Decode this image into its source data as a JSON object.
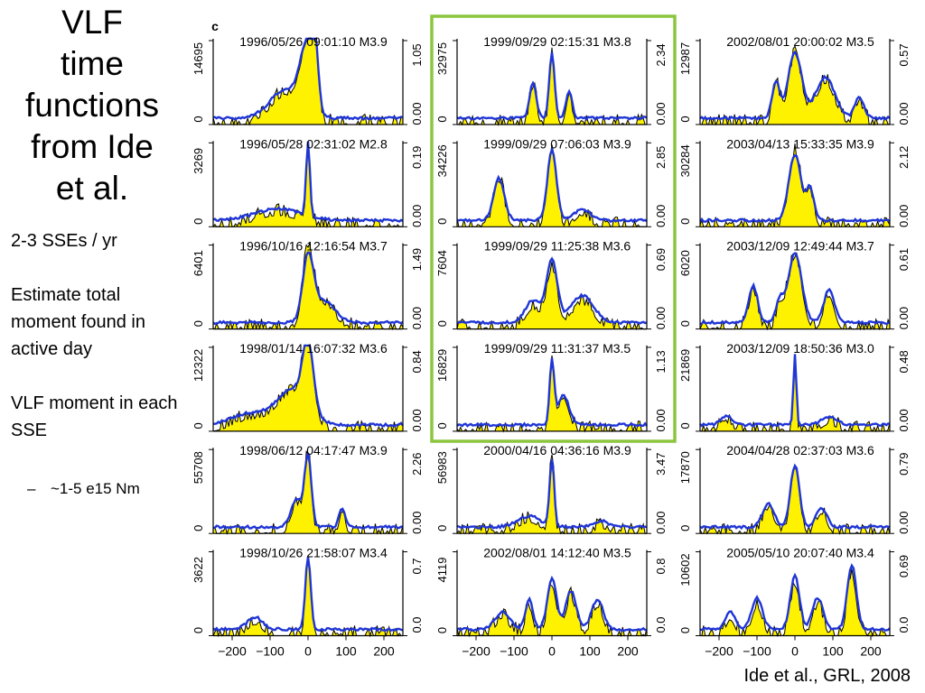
{
  "slide": {
    "title": "VLF\ntime\nfunctions\nfrom Ide\net al.",
    "bullets": [
      "2-3 SSEs / yr",
      "Estimate total moment found in active day",
      "VLF moment in each SSE"
    ],
    "sub_bullet": "~1-5 e15 Nm",
    "sub_bullet_marker": "–",
    "citation": "Ide et al., GRL, 2008",
    "panel_letter": "c"
  },
  "colors": {
    "fill": "#fff200",
    "blue": "#1f35d6",
    "black": "#000000",
    "highlight": "#8cc63f"
  },
  "chart_data": {
    "type": "area",
    "layout": "grid 6 rows x 3 columns",
    "x_ticks": [
      -200,
      -100,
      0,
      100,
      200
    ],
    "x_tick_labels": [
      "−200",
      "−100",
      "0",
      "100",
      "200"
    ],
    "xlim": [
      -250,
      250
    ],
    "highlighted_column": 1,
    "highlighted_rows": [
      0,
      1,
      2,
      3
    ],
    "panels": [
      {
        "col": 0,
        "row": 0,
        "label": "1996/05/26 09:01:10 M3.9",
        "left_max": "14695",
        "right_max": "1.05",
        "right_min": "0.00",
        "peaks": [
          {
            "x": -5,
            "h": 0.72,
            "w": 18
          },
          {
            "x": 15,
            "h": 0.9,
            "w": 10
          },
          {
            "x": -60,
            "h": 0.35,
            "w": 40
          }
        ],
        "blue_scale": 1.0
      },
      {
        "col": 0,
        "row": 1,
        "label": "1996/05/28 02:31:02 M2.8",
        "left_max": "3269",
        "right_max": "0.19",
        "right_min": "0.00",
        "peaks": [
          {
            "x": 0,
            "h": 0.95,
            "w": 5
          },
          {
            "x": -80,
            "h": 0.15,
            "w": 60
          }
        ],
        "blue_scale": 0.95
      },
      {
        "col": 0,
        "row": 2,
        "label": "1996/10/16 12:16:54 M3.7",
        "left_max": "6401",
        "right_max": "1.49",
        "right_min": "0.00",
        "peaks": [
          {
            "x": 0,
            "h": 0.85,
            "w": 14
          },
          {
            "x": 40,
            "h": 0.3,
            "w": 30
          }
        ],
        "blue_scale": 0.9
      },
      {
        "col": 0,
        "row": 3,
        "label": "1998/01/14 16:07:32 M3.6",
        "left_max": "12322",
        "right_max": "0.84",
        "right_min": "0.00",
        "peaks": [
          {
            "x": 0,
            "h": 0.85,
            "w": 14
          },
          {
            "x": -40,
            "h": 0.45,
            "w": 40
          },
          {
            "x": -150,
            "h": 0.15,
            "w": 50
          }
        ],
        "blue_scale": 0.95
      },
      {
        "col": 0,
        "row": 4,
        "label": "1998/06/12 04:17:47 M3.9",
        "left_max": "55708",
        "right_max": "2.26",
        "right_min": "0.00",
        "peaks": [
          {
            "x": 0,
            "h": 0.9,
            "w": 9
          },
          {
            "x": -30,
            "h": 0.35,
            "w": 15
          },
          {
            "x": 90,
            "h": 0.25,
            "w": 8
          }
        ],
        "blue_scale": 0.95
      },
      {
        "col": 0,
        "row": 5,
        "label": "1998/10/26 21:58:07 M3.4",
        "left_max": "3622",
        "right_max": "0.7",
        "right_min": "0.0",
        "peaks": [
          {
            "x": 0,
            "h": 0.9,
            "w": 7
          },
          {
            "x": -140,
            "h": 0.15,
            "w": 20
          }
        ],
        "blue_scale": 1.0
      },
      {
        "col": 1,
        "row": 0,
        "label": "1999/09/29 02:15:31 M3.8",
        "left_max": "32975",
        "right_max": "2.34",
        "right_min": "0.00",
        "peaks": [
          {
            "x": 0,
            "h": 0.85,
            "w": 7
          },
          {
            "x": -50,
            "h": 0.45,
            "w": 9
          },
          {
            "x": 45,
            "h": 0.35,
            "w": 8
          }
        ],
        "blue_scale": 0.95
      },
      {
        "col": 1,
        "row": 1,
        "label": "1999/09/29 07:06:03 M3.9",
        "left_max": "34226",
        "right_max": "2.85",
        "right_min": "0.00",
        "peaks": [
          {
            "x": 0,
            "h": 0.9,
            "w": 12
          },
          {
            "x": -140,
            "h": 0.55,
            "w": 14
          },
          {
            "x": 80,
            "h": 0.15,
            "w": 20
          }
        ],
        "blue_scale": 0.95
      },
      {
        "col": 1,
        "row": 2,
        "label": "1999/09/29 11:25:38 M3.6",
        "left_max": "7604",
        "right_max": "0.69",
        "right_min": "0.00",
        "peaks": [
          {
            "x": 0,
            "h": 0.7,
            "w": 14
          },
          {
            "x": -50,
            "h": 0.25,
            "w": 20
          },
          {
            "x": 80,
            "h": 0.3,
            "w": 30
          }
        ],
        "blue_scale": 1.1
      },
      {
        "col": 1,
        "row": 3,
        "label": "1999/09/29 11:31:37 M3.5",
        "left_max": "16829",
        "right_max": "1.13",
        "right_min": "0.00",
        "peaks": [
          {
            "x": 0,
            "h": 0.85,
            "w": 6
          },
          {
            "x": 30,
            "h": 0.4,
            "w": 15
          }
        ],
        "blue_scale": 0.9
      },
      {
        "col": 1,
        "row": 4,
        "label": "2000/04/16 04:36:16 M3.9",
        "left_max": "56983",
        "right_max": "3.47",
        "right_min": "0.00",
        "peaks": [
          {
            "x": 0,
            "h": 0.92,
            "w": 6
          },
          {
            "x": -60,
            "h": 0.15,
            "w": 30
          },
          {
            "x": 130,
            "h": 0.08,
            "w": 20
          }
        ],
        "blue_scale": 0.9
      },
      {
        "col": 1,
        "row": 5,
        "label": "2002/08/01 14:12:40 M3.5",
        "left_max": "4119",
        "right_max": "0.8",
        "right_min": "0.0",
        "peaks": [
          {
            "x": 0,
            "h": 0.6,
            "w": 12
          },
          {
            "x": -130,
            "h": 0.2,
            "w": 20
          },
          {
            "x": -60,
            "h": 0.35,
            "w": 10
          },
          {
            "x": 50,
            "h": 0.45,
            "w": 14
          },
          {
            "x": 120,
            "h": 0.35,
            "w": 15
          }
        ],
        "blue_scale": 1.05
      },
      {
        "col": 2,
        "row": 0,
        "label": "2002/08/01 20:00:02 M3.5",
        "left_max": "12987",
        "right_max": "0.57",
        "right_min": "0.00",
        "peaks": [
          {
            "x": 0,
            "h": 0.8,
            "w": 18
          },
          {
            "x": -50,
            "h": 0.45,
            "w": 10
          },
          {
            "x": 80,
            "h": 0.5,
            "w": 25
          },
          {
            "x": 170,
            "h": 0.25,
            "w": 12
          }
        ],
        "blue_scale": 1.0
      },
      {
        "col": 2,
        "row": 1,
        "label": "2003/04/13 15:33:35 M3.9",
        "left_max": "30284",
        "right_max": "2.12",
        "right_min": "0.00",
        "peaks": [
          {
            "x": 0,
            "h": 0.85,
            "w": 16
          },
          {
            "x": 40,
            "h": 0.4,
            "w": 10
          }
        ],
        "blue_scale": 0.95
      },
      {
        "col": 2,
        "row": 2,
        "label": "2003/12/09 12:49:44 M3.7",
        "left_max": "6020",
        "right_max": "0.61",
        "right_min": "0.00",
        "peaks": [
          {
            "x": 0,
            "h": 0.85,
            "w": 18
          },
          {
            "x": -110,
            "h": 0.45,
            "w": 12
          },
          {
            "x": 90,
            "h": 0.4,
            "w": 14
          },
          {
            "x": -40,
            "h": 0.25,
            "w": 10
          }
        ],
        "blue_scale": 1.0
      },
      {
        "col": 2,
        "row": 3,
        "label": "2003/12/09 18:50:36 M3.0",
        "left_max": "21869",
        "right_max": "0.48",
        "right_min": "0.00",
        "peaks": [
          {
            "x": 0,
            "h": 0.9,
            "w": 4
          },
          {
            "x": -180,
            "h": 0.12,
            "w": 15
          },
          {
            "x": 90,
            "h": 0.1,
            "w": 20
          }
        ],
        "blue_scale": 0.95
      },
      {
        "col": 2,
        "row": 4,
        "label": "2004/04/28 02:37:03 M3.6",
        "left_max": "17870",
        "right_max": "0.79",
        "right_min": "0.00",
        "peaks": [
          {
            "x": 0,
            "h": 0.8,
            "w": 12
          },
          {
            "x": -70,
            "h": 0.3,
            "w": 15
          },
          {
            "x": 70,
            "h": 0.25,
            "w": 14
          }
        ],
        "blue_scale": 0.95
      },
      {
        "col": 2,
        "row": 5,
        "label": "2005/05/10 20:07:40 M3.4",
        "left_max": "10602",
        "right_max": "0.69",
        "right_min": "0.0",
        "peaks": [
          {
            "x": 0,
            "h": 0.6,
            "w": 12
          },
          {
            "x": 150,
            "h": 0.72,
            "w": 12
          },
          {
            "x": -100,
            "h": 0.35,
            "w": 14
          },
          {
            "x": 60,
            "h": 0.35,
            "w": 14
          },
          {
            "x": -170,
            "h": 0.2,
            "w": 12
          }
        ],
        "blue_scale": 1.1
      }
    ]
  }
}
